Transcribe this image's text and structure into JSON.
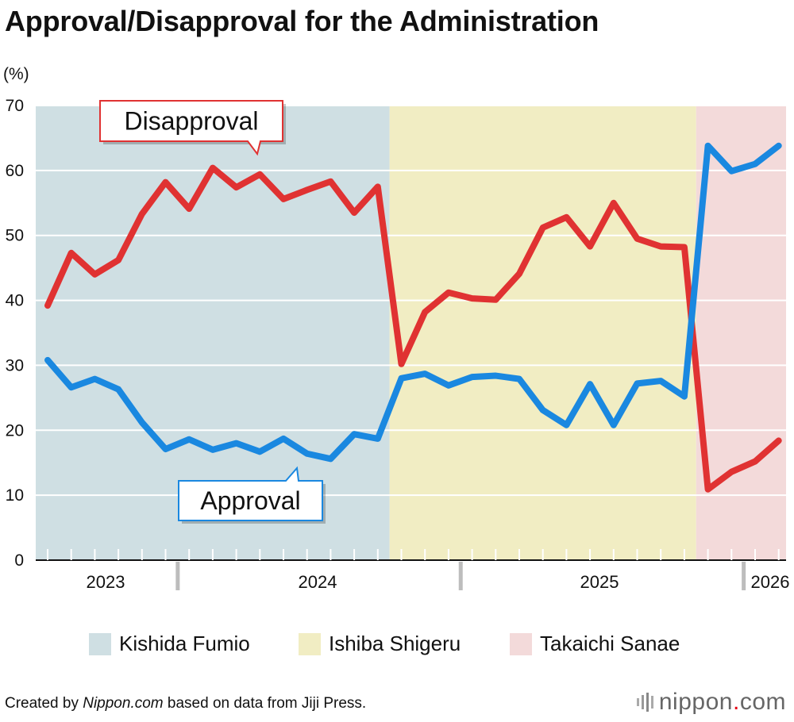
{
  "chart_data": {
    "type": "line",
    "title": "Approval/Disapproval for the Administration",
    "ylabel": "(%)",
    "ylim": [
      0,
      70
    ],
    "yticks": [
      "0",
      "10",
      "20",
      "30",
      "40",
      "50",
      "60",
      "70"
    ],
    "grid": true,
    "year_labels": [
      "2023",
      "2024",
      "2025",
      "2026"
    ],
    "x": [
      1,
      2,
      3,
      4,
      5,
      6,
      7,
      8,
      9,
      10,
      11,
      12,
      13,
      14,
      15,
      16,
      17,
      18,
      19,
      20,
      21,
      22,
      23,
      24,
      25,
      26,
      27,
      28,
      29,
      30,
      31,
      32
    ],
    "periods": [
      {
        "name": "Kishida Fumio",
        "from": 1,
        "to": 15,
        "color": "#cfdfe3"
      },
      {
        "name": "Ishiba Shigeru",
        "from": 16,
        "to": 28,
        "color": "#f1edc3"
      },
      {
        "name": "Takaichi Sanae",
        "from": 29,
        "to": 32,
        "color": "#f3dada"
      }
    ],
    "series": [
      {
        "name": "Disapproval",
        "color": "#e03232",
        "values": [
          39.2,
          47.3,
          44.0,
          46.2,
          53.3,
          58.2,
          54.1,
          60.4,
          57.4,
          59.4,
          55.6,
          57.0,
          58.3,
          53.5,
          57.5,
          30.2,
          38.2,
          41.2,
          40.3,
          40.1,
          44.1,
          51.2,
          52.8,
          48.3,
          55.0,
          49.5,
          48.3,
          48.2,
          10.9,
          13.6,
          15.2,
          18.4
        ]
      },
      {
        "name": "Approval",
        "color": "#1a88e0",
        "values": [
          30.8,
          26.6,
          27.9,
          26.3,
          21.2,
          17.1,
          18.6,
          17.0,
          18.0,
          16.7,
          18.7,
          16.4,
          15.6,
          19.4,
          18.7,
          28.0,
          28.7,
          26.9,
          28.2,
          28.4,
          27.9,
          23.1,
          20.8,
          27.1,
          20.8,
          27.2,
          27.6,
          25.2,
          63.8,
          59.9,
          61.0,
          63.8
        ]
      }
    ],
    "annotations": [
      "Disapproval",
      "Approval"
    ],
    "legend_position": "bottom"
  },
  "legend": [
    {
      "label": "Kishida Fumio",
      "color": "#cfdfe3"
    },
    {
      "label": "Ishiba Shigeru",
      "color": "#f1edc3"
    },
    {
      "label": "Takaichi Sanae",
      "color": "#f3dada"
    }
  ],
  "footer": {
    "prefix": "Created by ",
    "source_site": "Nippon.com",
    "suffix": " based on data from Jiji Press."
  },
  "logo": {
    "name": "nippon",
    "dot": ".",
    "tld": "com"
  }
}
